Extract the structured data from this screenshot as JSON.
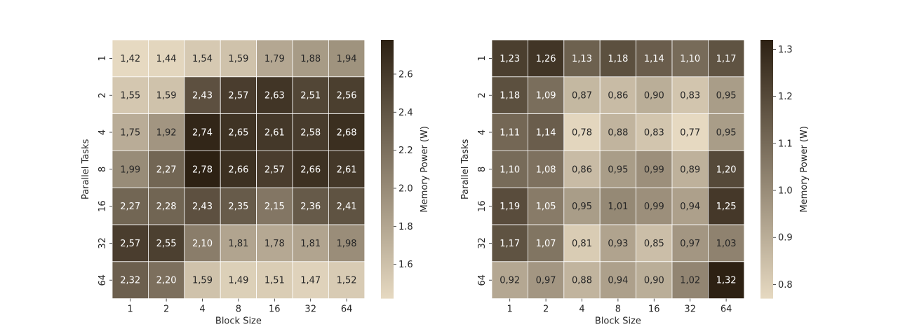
{
  "chart_data": [
    {
      "type": "heatmap",
      "title": "",
      "xlabel": "Block Size",
      "ylabel": "Parallel Tasks",
      "x_categories": [
        "1",
        "2",
        "4",
        "8",
        "16",
        "32",
        "64"
      ],
      "y_categories": [
        "1",
        "2",
        "4",
        "8",
        "16",
        "32",
        "64"
      ],
      "values": [
        [
          1.42,
          1.44,
          1.54,
          1.59,
          1.79,
          1.88,
          1.94
        ],
        [
          1.55,
          1.59,
          2.43,
          2.57,
          2.63,
          2.51,
          2.56
        ],
        [
          1.75,
          1.92,
          2.74,
          2.65,
          2.61,
          2.58,
          2.68
        ],
        [
          1.99,
          2.27,
          2.78,
          2.66,
          2.57,
          2.66,
          2.61
        ],
        [
          2.27,
          2.28,
          2.43,
          2.35,
          2.15,
          2.36,
          2.41
        ],
        [
          2.57,
          2.55,
          2.1,
          1.81,
          1.78,
          1.81,
          1.98
        ],
        [
          2.32,
          2.2,
          1.59,
          1.49,
          1.51,
          1.47,
          1.52
        ]
      ],
      "cell_labels": [
        [
          "1,42",
          "1,44",
          "1,54",
          "1,59",
          "1,79",
          "1,88",
          "1,94"
        ],
        [
          "1,55",
          "1,59",
          "2,43",
          "2,57",
          "2,63",
          "2,51",
          "2,56"
        ],
        [
          "1,75",
          "1,92",
          "2,74",
          "2,65",
          "2,61",
          "2,58",
          "2,68"
        ],
        [
          "1,99",
          "2,27",
          "2,78",
          "2,66",
          "2,57",
          "2,66",
          "2,61"
        ],
        [
          "2,27",
          "2,28",
          "2,43",
          "2,35",
          "2,15",
          "2,36",
          "2,41"
        ],
        [
          "2,57",
          "2,55",
          "2,10",
          "1,81",
          "1,78",
          "1,81",
          "1,98"
        ],
        [
          "2,32",
          "2,20",
          "1,59",
          "1,49",
          "1,51",
          "1,47",
          "1,52"
        ]
      ],
      "colorbar": {
        "label": "Memory Power (W)",
        "range": [
          1.42,
          2.78
        ],
        "ticks": [
          1.6,
          1.8,
          2.0,
          2.2,
          2.4,
          2.6
        ],
        "tick_labels": [
          "1.6",
          "1.8",
          "2.0",
          "2.2",
          "2.4",
          "2.6"
        ]
      },
      "colormap": [
        "#e6d9c1",
        "#2d2113"
      ],
      "grid": true
    },
    {
      "type": "heatmap",
      "title": "",
      "xlabel": "Block Size",
      "ylabel": "Parallel Tasks",
      "x_categories": [
        "1",
        "2",
        "4",
        "8",
        "16",
        "32",
        "64"
      ],
      "y_categories": [
        "1",
        "2",
        "4",
        "8",
        "16",
        "32",
        "64"
      ],
      "values": [
        [
          1.23,
          1.26,
          1.13,
          1.18,
          1.14,
          1.1,
          1.17
        ],
        [
          1.18,
          1.09,
          0.87,
          0.86,
          0.9,
          0.83,
          0.95
        ],
        [
          1.11,
          1.14,
          0.78,
          0.88,
          0.83,
          0.77,
          0.95
        ],
        [
          1.1,
          1.08,
          0.86,
          0.95,
          0.99,
          0.89,
          1.2
        ],
        [
          1.19,
          1.05,
          0.95,
          1.01,
          0.99,
          0.94,
          1.25
        ],
        [
          1.17,
          1.07,
          0.81,
          0.93,
          0.85,
          0.97,
          1.03
        ],
        [
          0.92,
          0.97,
          0.88,
          0.94,
          0.9,
          1.02,
          1.32
        ]
      ],
      "cell_labels": [
        [
          "1,23",
          "1,26",
          "1,13",
          "1,18",
          "1,14",
          "1,10",
          "1,17"
        ],
        [
          "1,18",
          "1,09",
          "0,87",
          "0,86",
          "0,90",
          "0,83",
          "0,95"
        ],
        [
          "1,11",
          "1,14",
          "0,78",
          "0,88",
          "0,83",
          "0,77",
          "0,95"
        ],
        [
          "1,10",
          "1,08",
          "0,86",
          "0,95",
          "0,99",
          "0,89",
          "1,20"
        ],
        [
          "1,19",
          "1,05",
          "0,95",
          "1,01",
          "0,99",
          "0,94",
          "1,25"
        ],
        [
          "1,17",
          "1,07",
          "0,81",
          "0,93",
          "0,85",
          "0,97",
          "1,03"
        ],
        [
          "0,92",
          "0,97",
          "0,88",
          "0,94",
          "0,90",
          "1,02",
          "1,32"
        ]
      ],
      "colorbar": {
        "label": "Memory Power (W)",
        "range": [
          0.77,
          1.32
        ],
        "ticks": [
          0.8,
          0.9,
          1.0,
          1.1,
          1.2,
          1.3
        ],
        "tick_labels": [
          "0.8",
          "0.9",
          "1.0",
          "1.1",
          "1.2",
          "1.3"
        ]
      },
      "colormap": [
        "#e6d9c1",
        "#2d2113"
      ],
      "grid": true
    }
  ]
}
